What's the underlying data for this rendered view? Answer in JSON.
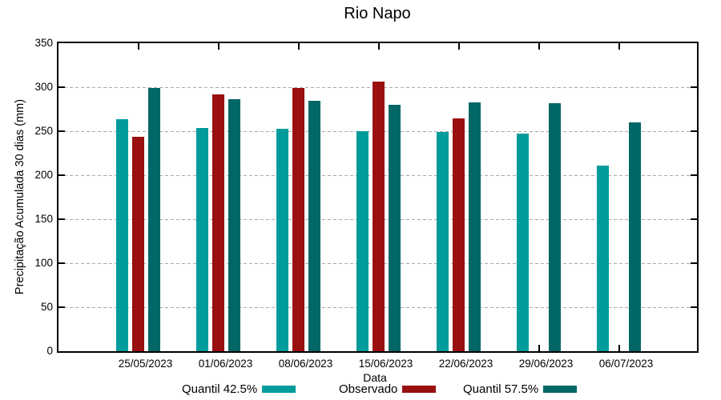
{
  "title": "Rio Napo",
  "axes": {
    "xlabel": "Data",
    "ylabel": "Precipitação Acumulada 30 dias (mm)"
  },
  "chart_data": {
    "type": "bar",
    "categories": [
      "25/05/2023",
      "01/06/2023",
      "08/06/2023",
      "15/06/2023",
      "22/06/2023",
      "29/06/2023",
      "06/07/2023"
    ],
    "series": [
      {
        "name": "Quantil 42.5%",
        "color": "#009B9B",
        "values": [
          264,
          254,
          253,
          250,
          249,
          247,
          211
        ]
      },
      {
        "name": "Observado",
        "color": "#9A0F0F",
        "values": [
          244,
          292,
          299,
          306,
          265,
          null,
          null
        ]
      },
      {
        "name": "Quantil 57.5%",
        "color": "#006666",
        "values": [
          299,
          286,
          285,
          280,
          283,
          282,
          260
        ]
      }
    ],
    "title": "Rio Napo",
    "xlabel": "Data",
    "ylabel": "Precipitação Acumulada 30 dias (mm)",
    "ylim": [
      0,
      350
    ],
    "yticks": [
      0,
      50,
      100,
      150,
      200,
      250,
      300,
      350
    ],
    "grid": "horizontal-dashed",
    "legend_position": "bottom-center",
    "colors": {
      "axis": "#000000",
      "grid": "#a8a8a8",
      "background": "#ffffff"
    }
  }
}
